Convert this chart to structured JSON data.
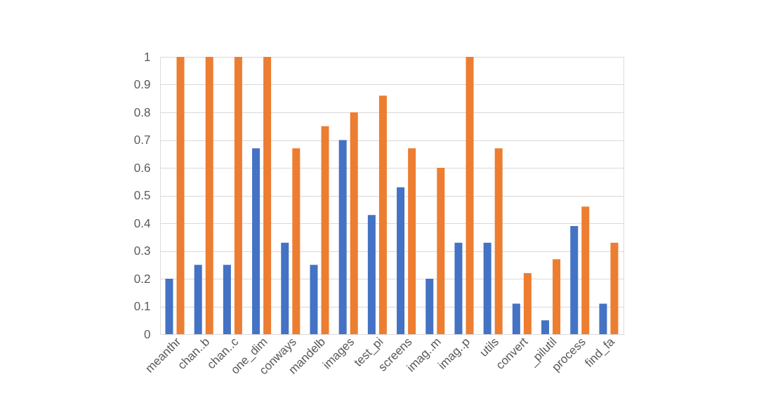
{
  "chart_data": {
    "type": "bar",
    "categories": [
      "meanthr",
      "chan..b",
      "chan..c",
      "one_dim",
      "conways",
      "mandelb",
      "images",
      "test_pi",
      "screens",
      "imag..m",
      "imag..p",
      "utils",
      "convert",
      "_pilutil",
      "process",
      "find_fa"
    ],
    "series": [
      {
        "color": "#4472c4",
        "values": [
          0.2,
          0.25,
          0.25,
          0.67,
          0.33,
          0.25,
          0.7,
          0.43,
          0.53,
          0.2,
          0.33,
          0.33,
          0.11,
          0.05,
          0.39,
          0.11
        ]
      },
      {
        "color": "#ed7d31",
        "values": [
          1,
          1,
          1,
          1,
          0.67,
          0.75,
          0.8,
          0.86,
          0.67,
          0.6,
          1,
          0.67,
          0.22,
          0.27,
          0.46,
          0.33
        ]
      }
    ],
    "ylim": [
      0,
      1
    ],
    "yticks": [
      0,
      0.1,
      0.2,
      0.3,
      0.4,
      0.5,
      0.6,
      0.7,
      0.8,
      0.9,
      1
    ],
    "grid": "y",
    "legend": false
  }
}
